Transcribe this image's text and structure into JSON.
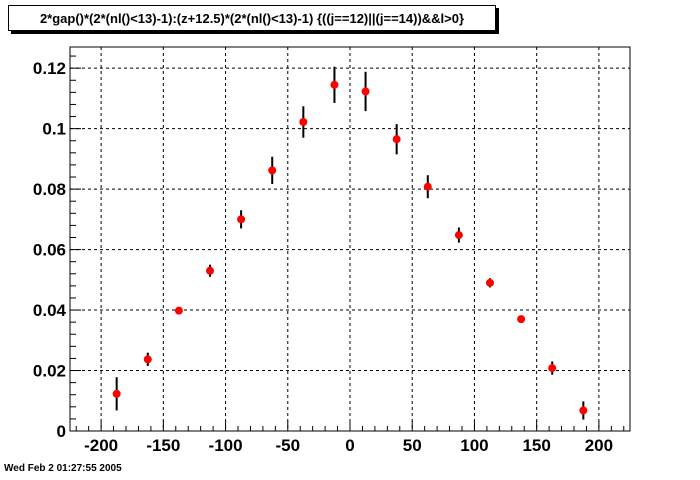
{
  "title": "2*gap()*(2*(nl()<13)-1):(z+12.5)*(2*(nl()<13)-1) {((j==12)||(j==14))&&l>0}",
  "timestamp": "Wed Feb  2 01:27:55 2005",
  "colors": {
    "marker": "#ff0000",
    "error_bar": "#000000",
    "grid": "#000000"
  },
  "chart_data": {
    "type": "scatter",
    "title": "2*gap()*(2*(nl()<13)-1):(z+12.5)*(2*(nl()<13)-1) {((j==12)||(j==14))&&l>0}",
    "xlabel": "",
    "ylabel": "",
    "xlim": [
      -225,
      225
    ],
    "ylim": [
      0,
      0.127
    ],
    "grid": true,
    "x_ticks": [
      -200,
      -150,
      -100,
      -50,
      0,
      50,
      100,
      150,
      200
    ],
    "x_tick_labels": [
      "-200",
      "-150",
      "-100",
      "-50",
      "0",
      "50",
      "100",
      "150",
      "200"
    ],
    "y_ticks": [
      0,
      0.02,
      0.04,
      0.06,
      0.08,
      0.1,
      0.12
    ],
    "y_tick_labels": [
      "0",
      "0.02",
      "0.04",
      "0.06",
      "0.08",
      "0.1",
      "0.12"
    ],
    "series": [
      {
        "x": [
          -187.5,
          -162.5,
          -137.5,
          -112.5,
          -87.5,
          -62.5,
          -37.5,
          -12.5,
          12.5,
          37.5,
          62.5,
          87.5,
          112.5,
          137.5,
          162.5,
          187.5
        ],
        "y": [
          0.0123,
          0.0237,
          0.0398,
          0.053,
          0.07,
          0.0862,
          0.1022,
          0.1145,
          0.1123,
          0.0965,
          0.0808,
          0.0648,
          0.049,
          0.037,
          0.0208,
          0.0068
        ],
        "err": [
          0.0055,
          0.0022,
          0.0011,
          0.002,
          0.003,
          0.0045,
          0.0052,
          0.006,
          0.0065,
          0.005,
          0.0038,
          0.0025,
          0.0015,
          0.001,
          0.0022,
          0.003
        ]
      }
    ]
  }
}
